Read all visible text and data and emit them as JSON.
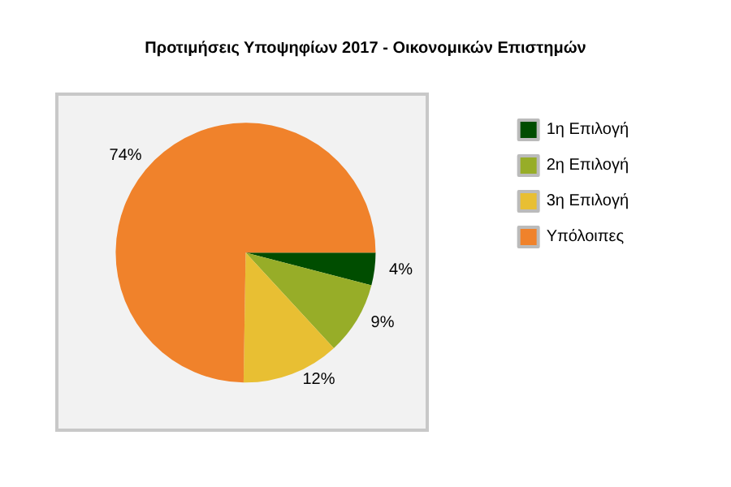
{
  "chart_data": {
    "type": "pie",
    "title": "Προτιμήσεις Υποψηφίων 2017 - Οικονομικών Επιστημών",
    "categories": [
      "1η Επιλογή",
      "2η Επιλογή",
      "3η Επιλογή",
      "Υπόλοιπες"
    ],
    "values": [
      4,
      9,
      12,
      74
    ],
    "colors": [
      "#004d00",
      "#97ad28",
      "#e8bf33",
      "#f0822b"
    ],
    "value_labels": [
      "4%",
      "9%",
      "12%",
      "74%"
    ],
    "legend": "top right"
  }
}
